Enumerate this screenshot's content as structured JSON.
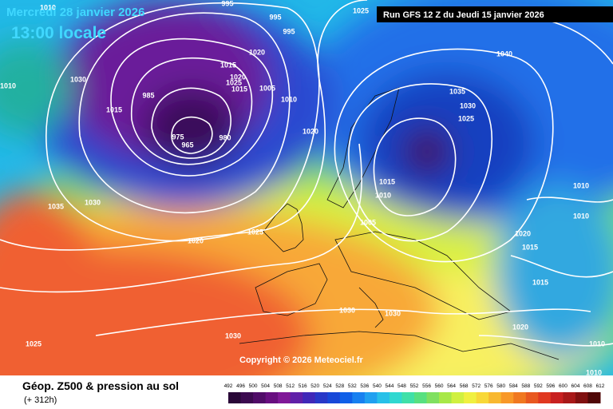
{
  "header": {
    "date": "Mercredi 28 janvier 2026",
    "time": "13:00 locale",
    "run": "Run GFS 12 Z du Jeudi 15 janvier 2026"
  },
  "copyright": "Copyright © 2026 Meteociel.fr",
  "footer": {
    "title": "Géop. Z500 & pression au sol",
    "lead": "(+ 312h)"
  },
  "isobar_labels": [
    "1010",
    "995",
    "995",
    "995",
    "1025",
    "1030",
    "1020",
    "1010",
    "1015",
    "985",
    "1015",
    "1020",
    "1025",
    "1015",
    "1005",
    "1010",
    "975",
    "965",
    "980",
    "1020",
    "1040",
    "1035",
    "1030",
    "1025",
    "1015",
    "1010",
    "1035",
    "1030",
    "1020",
    "1025",
    "1005",
    "1010",
    "1010",
    "1020",
    "1015",
    "1015",
    "1030",
    "1030",
    "1030",
    "1020",
    "1025",
    "1010",
    "1010"
  ],
  "legend": {
    "labels": [
      "492",
      "496",
      "500",
      "504",
      "508",
      "512",
      "516",
      "520",
      "524",
      "528",
      "532",
      "536",
      "540",
      "544",
      "548",
      "552",
      "556",
      "560",
      "564",
      "568",
      "572",
      "576",
      "580",
      "584",
      "588",
      "592",
      "596",
      "600",
      "604",
      "608",
      "612"
    ]
  }
}
